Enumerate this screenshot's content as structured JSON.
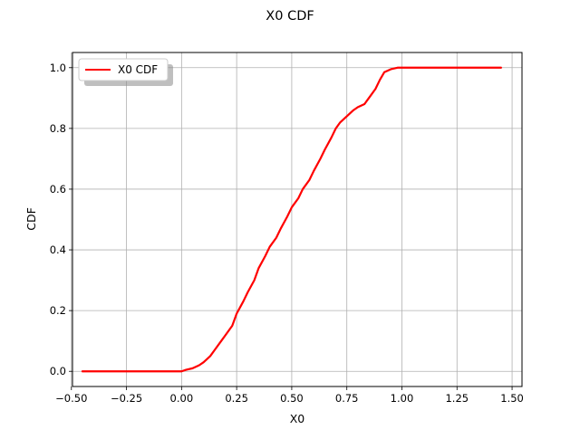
{
  "chart_data": {
    "type": "line",
    "title": "X0 CDF",
    "xlabel": "X0",
    "ylabel": "CDF",
    "xlim": [
      -0.495,
      1.545
    ],
    "ylim": [
      -0.05,
      1.05
    ],
    "xticks": [
      -0.5,
      -0.25,
      0.0,
      0.25,
      0.5,
      0.75,
      1.0,
      1.25,
      1.5
    ],
    "xtick_labels": [
      "−0.50",
      "−0.25",
      "0.00",
      "0.25",
      "0.50",
      "0.75",
      "1.00",
      "1.25",
      "1.50"
    ],
    "yticks": [
      0.0,
      0.2,
      0.4,
      0.6,
      0.8,
      1.0
    ],
    "ytick_labels": [
      "0.0",
      "0.2",
      "0.4",
      "0.6",
      "0.8",
      "1.0"
    ],
    "grid": true,
    "legend": {
      "position": "top-left",
      "entries": [
        "X0 CDF"
      ]
    },
    "series": [
      {
        "name": "X0 CDF",
        "color": "#ff0000",
        "x": [
          -0.45,
          -0.2,
          0.0,
          0.02,
          0.05,
          0.08,
          0.1,
          0.13,
          0.15,
          0.18,
          0.2,
          0.23,
          0.25,
          0.28,
          0.3,
          0.33,
          0.35,
          0.38,
          0.4,
          0.43,
          0.45,
          0.48,
          0.5,
          0.53,
          0.55,
          0.58,
          0.6,
          0.63,
          0.65,
          0.68,
          0.7,
          0.72,
          0.75,
          0.78,
          0.8,
          0.83,
          0.85,
          0.88,
          0.9,
          0.92,
          0.95,
          0.98,
          1.0,
          1.2,
          1.45
        ],
        "y": [
          0.0,
          0.0,
          0.0,
          0.005,
          0.01,
          0.02,
          0.03,
          0.05,
          0.07,
          0.1,
          0.12,
          0.15,
          0.19,
          0.23,
          0.26,
          0.3,
          0.34,
          0.38,
          0.41,
          0.44,
          0.47,
          0.51,
          0.54,
          0.57,
          0.6,
          0.63,
          0.66,
          0.7,
          0.73,
          0.77,
          0.8,
          0.82,
          0.84,
          0.86,
          0.87,
          0.88,
          0.9,
          0.93,
          0.96,
          0.985,
          0.995,
          1.0,
          1.0,
          1.0,
          1.0
        ]
      }
    ]
  }
}
